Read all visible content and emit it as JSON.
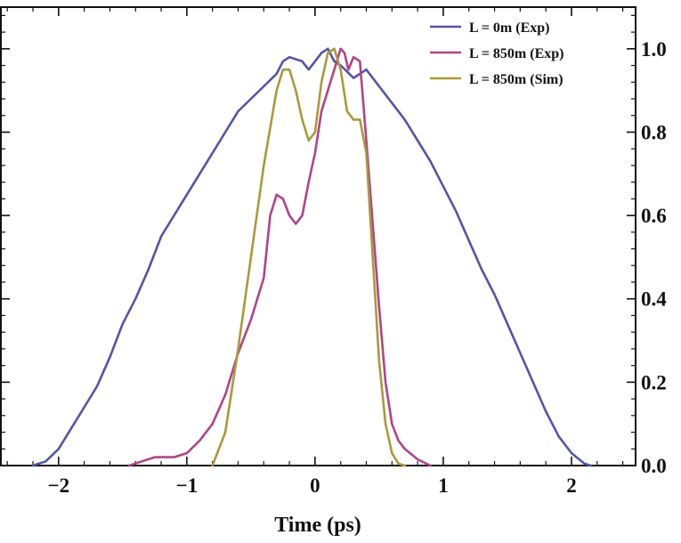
{
  "chart_data": {
    "type": "line",
    "title": "",
    "xlabel": "Time (ps)",
    "ylabel": "",
    "xlim": [
      -2.45,
      2.5
    ],
    "ylim": [
      0.0,
      1.1
    ],
    "y_axis_side": "right",
    "grid": false,
    "legend_position": "top-right",
    "x_ticks": [
      {
        "value": -2,
        "label": "−2"
      },
      {
        "value": -1,
        "label": "−1"
      },
      {
        "value": 0,
        "label": "0"
      },
      {
        "value": 1,
        "label": "1"
      },
      {
        "value": 2,
        "label": "2"
      }
    ],
    "y_ticks": [
      {
        "value": 0.0,
        "label": "0.0"
      },
      {
        "value": 0.2,
        "label": "0.2"
      },
      {
        "value": 0.4,
        "label": "0.4"
      },
      {
        "value": 0.6,
        "label": "0.6"
      },
      {
        "value": 0.8,
        "label": "0.8"
      },
      {
        "value": 1.0,
        "label": "1.0"
      }
    ],
    "series": [
      {
        "name": "L = 0m (Exp)",
        "color": "#5454a8",
        "x": [
          -2.2,
          -2.1,
          -2.0,
          -1.9,
          -1.8,
          -1.7,
          -1.6,
          -1.5,
          -1.4,
          -1.3,
          -1.2,
          -1.1,
          -1.0,
          -0.9,
          -0.8,
          -0.7,
          -0.6,
          -0.5,
          -0.4,
          -0.3,
          -0.25,
          -0.2,
          -0.1,
          -0.05,
          0.0,
          0.05,
          0.1,
          0.15,
          0.2,
          0.3,
          0.4,
          0.5,
          0.6,
          0.7,
          0.8,
          0.9,
          1.0,
          1.1,
          1.2,
          1.3,
          1.4,
          1.5,
          1.6,
          1.7,
          1.8,
          1.9,
          2.0,
          2.1,
          2.15
        ],
        "y": [
          0.0,
          0.01,
          0.04,
          0.09,
          0.14,
          0.19,
          0.26,
          0.34,
          0.4,
          0.47,
          0.55,
          0.6,
          0.65,
          0.7,
          0.75,
          0.8,
          0.85,
          0.88,
          0.91,
          0.94,
          0.97,
          0.98,
          0.97,
          0.95,
          0.97,
          0.99,
          1.0,
          0.97,
          0.96,
          0.93,
          0.95,
          0.91,
          0.87,
          0.83,
          0.78,
          0.73,
          0.67,
          0.61,
          0.54,
          0.47,
          0.41,
          0.34,
          0.27,
          0.2,
          0.13,
          0.07,
          0.03,
          0.005,
          0.0
        ]
      },
      {
        "name": "L = 850m (Exp)",
        "color": "#b0448a",
        "x": [
          -1.45,
          -1.35,
          -1.25,
          -1.1,
          -1.0,
          -0.9,
          -0.8,
          -0.7,
          -0.6,
          -0.5,
          -0.4,
          -0.35,
          -0.3,
          -0.25,
          -0.2,
          -0.15,
          -0.1,
          -0.05,
          0.0,
          0.05,
          0.1,
          0.15,
          0.2,
          0.23,
          0.26,
          0.3,
          0.35,
          0.4,
          0.45,
          0.5,
          0.55,
          0.6,
          0.65,
          0.7,
          0.8,
          0.9
        ],
        "y": [
          0.0,
          0.01,
          0.02,
          0.02,
          0.03,
          0.06,
          0.1,
          0.17,
          0.27,
          0.35,
          0.45,
          0.6,
          0.65,
          0.64,
          0.6,
          0.58,
          0.6,
          0.68,
          0.75,
          0.85,
          0.9,
          0.95,
          1.0,
          0.99,
          0.95,
          0.98,
          0.97,
          0.78,
          0.58,
          0.38,
          0.2,
          0.1,
          0.06,
          0.04,
          0.015,
          0.0
        ]
      },
      {
        "name": "L = 850m  (Sim)",
        "color": "#a89a3c",
        "x": [
          -0.8,
          -0.7,
          -0.6,
          -0.5,
          -0.4,
          -0.3,
          -0.25,
          -0.2,
          -0.15,
          -0.1,
          -0.05,
          0.0,
          0.05,
          0.1,
          0.15,
          0.2,
          0.25,
          0.3,
          0.35,
          0.4,
          0.45,
          0.5,
          0.55,
          0.6,
          0.65,
          0.7
        ],
        "y": [
          0.0,
          0.08,
          0.28,
          0.5,
          0.72,
          0.9,
          0.95,
          0.95,
          0.9,
          0.83,
          0.78,
          0.8,
          0.92,
          0.99,
          1.0,
          0.95,
          0.85,
          0.83,
          0.83,
          0.75,
          0.5,
          0.25,
          0.1,
          0.03,
          0.005,
          0.0
        ]
      }
    ]
  }
}
